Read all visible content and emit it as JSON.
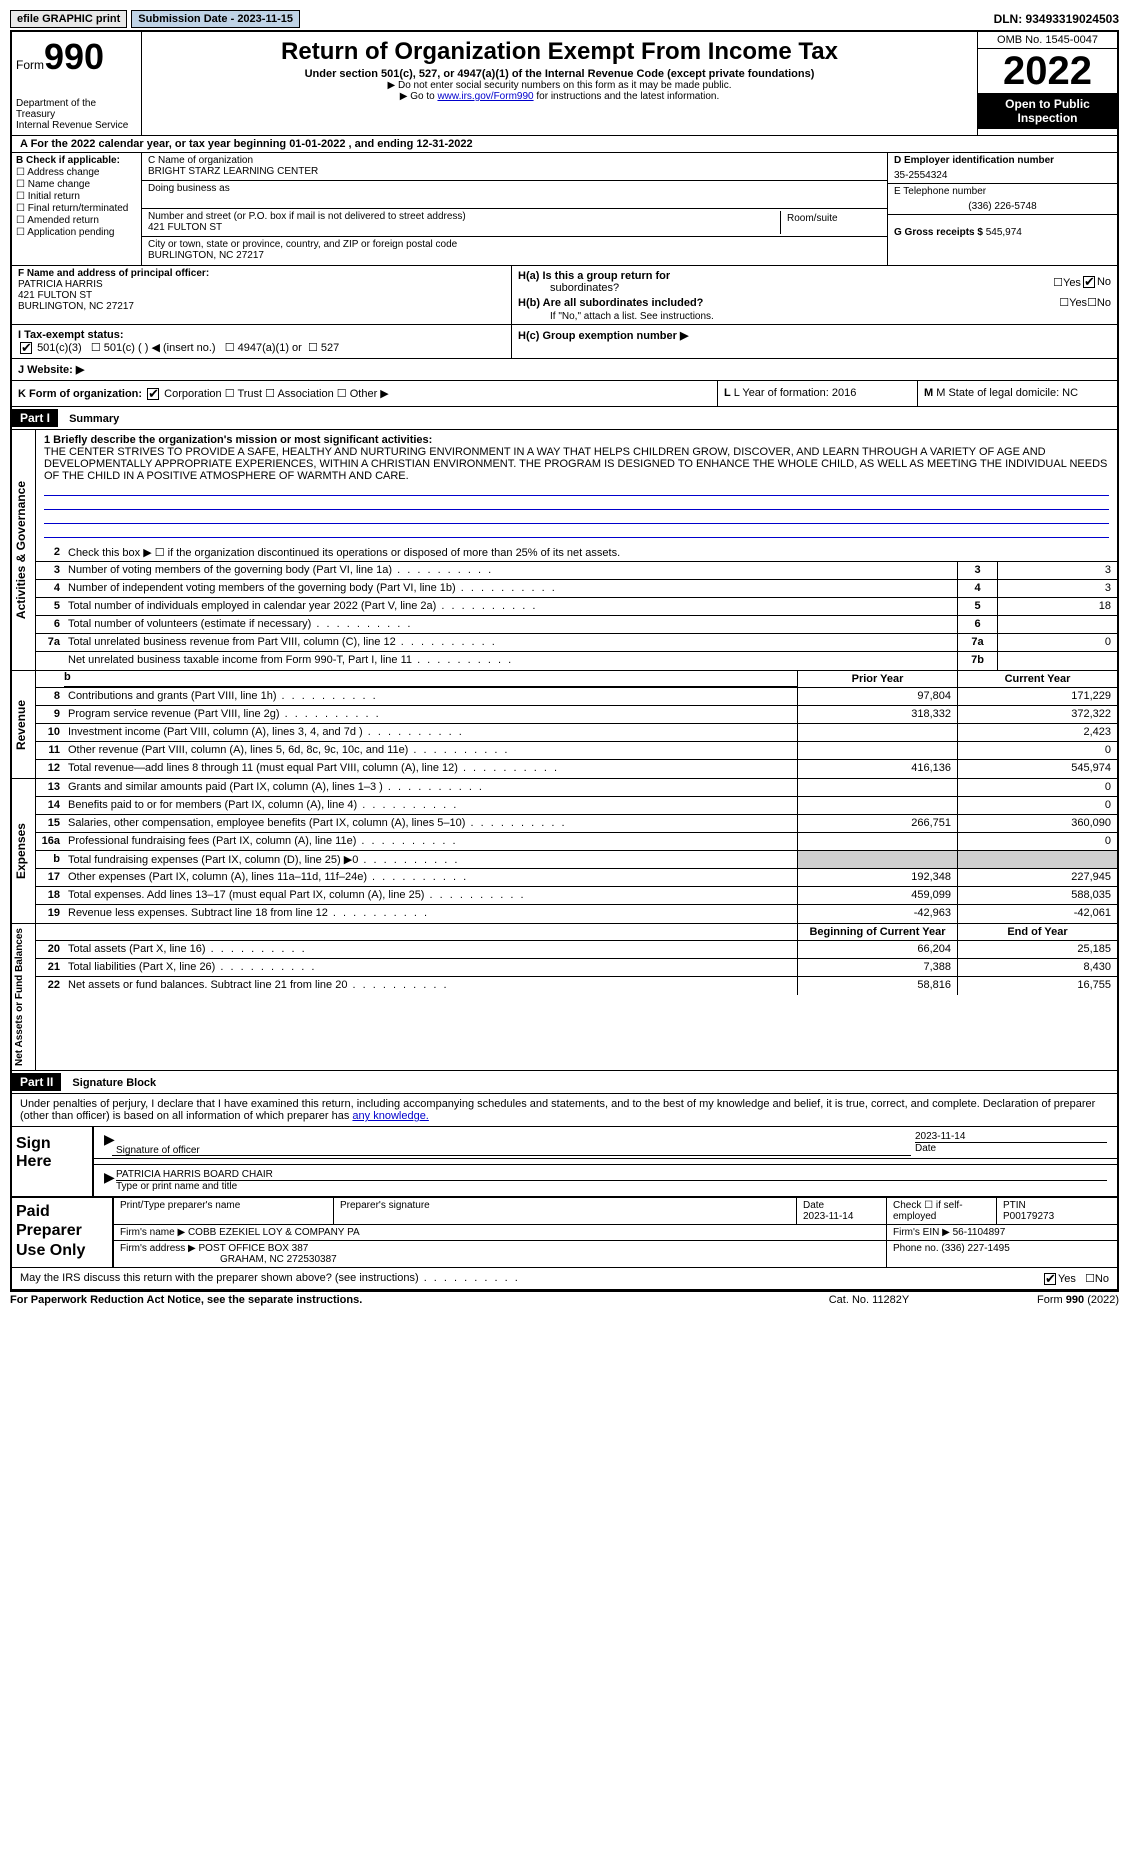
{
  "topbar": {
    "efile": "efile GRAPHIC print",
    "submission": "Submission Date - 2023-11-15",
    "dln": "DLN: 93493319024503"
  },
  "header": {
    "form_label": "Form",
    "form_num": "990",
    "dept": "Department of the Treasury",
    "irs": "Internal Revenue Service",
    "title": "Return of Organization Exempt From Income Tax",
    "subtitle": "Under section 501(c), 527, or 4947(a)(1) of the Internal Revenue Code (except private foundations)",
    "note1": "▶ Do not enter social security numbers on this form as it may be made public.",
    "note2_pre": "▶ Go to ",
    "note2_link": "www.irs.gov/Form990",
    "note2_post": " for instructions and the latest information.",
    "omb": "OMB No. 1545-0047",
    "year": "2022",
    "open": "Open to Public Inspection"
  },
  "row_a": "A For the 2022 calendar year, or tax year beginning 01-01-2022    , and ending 12-31-2022",
  "col_b": {
    "label": "B Check if applicable:",
    "items": [
      "Address change",
      "Name change",
      "Initial return",
      "Final return/terminated",
      "Amended return",
      "Application pending"
    ]
  },
  "col_c": {
    "name_label": "C Name of organization",
    "name": "BRIGHT STARZ LEARNING CENTER",
    "dba_label": "Doing business as",
    "street_label": "Number and street (or P.O. box if mail is not delivered to street address)",
    "street": "421 FULTON ST",
    "room_label": "Room/suite",
    "city_label": "City or town, state or province, country, and ZIP or foreign postal code",
    "city": "BURLINGTON, NC  27217"
  },
  "col_d": {
    "ein_label": "D Employer identification number",
    "ein": "35-2554324",
    "phone_label": "E Telephone number",
    "phone": "(336) 226-5748",
    "gross_label": "G Gross receipts $",
    "gross": "545,974"
  },
  "col_f": {
    "label": "F  Name and address of principal officer:",
    "name": "PATRICIA HARRIS",
    "street": "421 FULTON ST",
    "city": "BURLINGTON, NC  27217"
  },
  "col_h": {
    "ha": "H(a)  Is this a group return for",
    "ha2": "subordinates?",
    "hb": "H(b)  Are all subordinates included?",
    "hb_note": "If \"No,\" attach a list. See instructions.",
    "hc": "H(c)  Group exemption number ▶"
  },
  "tax": {
    "label": "I   Tax-exempt status:",
    "opts": [
      "501(c)(3)",
      "501(c) (  ) ◀ (insert no.)",
      "4947(a)(1) or",
      "527"
    ]
  },
  "website": "J   Website: ▶",
  "row_k": {
    "label": "K Form of organization:",
    "opts": [
      "Corporation",
      "Trust",
      "Association",
      "Other ▶"
    ],
    "year_label": "L Year of formation: 2016",
    "state_label": "M State of legal domicile: NC"
  },
  "part1": {
    "hdr": "Part I",
    "title": "Summary",
    "mission_label": "1 Briefly describe the organization's mission or most significant activities:",
    "mission": "THE CENTER STRIVES TO PROVIDE A SAFE, HEALTHY AND NURTURING ENVIRONMENT IN A WAY THAT HELPS CHILDREN GROW, DISCOVER, AND LEARN THROUGH A VARIETY OF AGE AND DEVELOPMENTALLY APPROPRIATE EXPERIENCES, WITHIN A CHRISTIAN ENVIRONMENT. THE PROGRAM IS DESIGNED TO ENHANCE THE WHOLE CHILD, AS WELL AS MEETING THE INDIVIDUAL NEEDS OF THE CHILD IN A POSITIVE ATMOSPHERE OF WARMTH AND CARE.",
    "line2": "Check this box ▶ ☐  if the organization discontinued its operations or disposed of more than 25% of its net assets."
  },
  "activities": {
    "label": "Activities & Governance",
    "lines": [
      {
        "n": "3",
        "d": "Number of voting members of the governing body (Part VI, line 1a)",
        "box": "3",
        "v": "3"
      },
      {
        "n": "4",
        "d": "Number of independent voting members of the governing body (Part VI, line 1b)",
        "box": "4",
        "v": "3"
      },
      {
        "n": "5",
        "d": "Total number of individuals employed in calendar year 2022 (Part V, line 2a)",
        "box": "5",
        "v": "18"
      },
      {
        "n": "6",
        "d": "Total number of volunteers (estimate if necessary)",
        "box": "6",
        "v": ""
      },
      {
        "n": "7a",
        "d": "Total unrelated business revenue from Part VIII, column (C), line 12",
        "box": "7a",
        "v": "0"
      },
      {
        "n": "",
        "d": "Net unrelated business taxable income from Form 990-T, Part I, line 11",
        "box": "7b",
        "v": ""
      }
    ]
  },
  "revenue": {
    "label": "Revenue",
    "hdr_prior": "Prior Year",
    "hdr_current": "Current Year",
    "lines": [
      {
        "n": "8",
        "d": "Contributions and grants (Part VIII, line 1h)",
        "p": "97,804",
        "c": "171,229"
      },
      {
        "n": "9",
        "d": "Program service revenue (Part VIII, line 2g)",
        "p": "318,332",
        "c": "372,322"
      },
      {
        "n": "10",
        "d": "Investment income (Part VIII, column (A), lines 3, 4, and 7d )",
        "p": "",
        "c": "2,423"
      },
      {
        "n": "11",
        "d": "Other revenue (Part VIII, column (A), lines 5, 6d, 8c, 9c, 10c, and 11e)",
        "p": "",
        "c": "0"
      },
      {
        "n": "12",
        "d": "Total revenue—add lines 8 through 11 (must equal Part VIII, column (A), line 12)",
        "p": "416,136",
        "c": "545,974"
      }
    ]
  },
  "expenses": {
    "label": "Expenses",
    "lines": [
      {
        "n": "13",
        "d": "Grants and similar amounts paid (Part IX, column (A), lines 1–3 )",
        "p": "",
        "c": "0"
      },
      {
        "n": "14",
        "d": "Benefits paid to or for members (Part IX, column (A), line 4)",
        "p": "",
        "c": "0"
      },
      {
        "n": "15",
        "d": "Salaries, other compensation, employee benefits (Part IX, column (A), lines 5–10)",
        "p": "266,751",
        "c": "360,090"
      },
      {
        "n": "16a",
        "d": "Professional fundraising fees (Part IX, column (A), line 11e)",
        "p": "",
        "c": "0"
      },
      {
        "n": "b",
        "d": "Total fundraising expenses (Part IX, column (D), line 25) ▶0",
        "p": "shaded",
        "c": "shaded"
      },
      {
        "n": "17",
        "d": "Other expenses (Part IX, column (A), lines 11a–11d, 11f–24e)",
        "p": "192,348",
        "c": "227,945"
      },
      {
        "n": "18",
        "d": "Total expenses. Add lines 13–17 (must equal Part IX, column (A), line 25)",
        "p": "459,099",
        "c": "588,035"
      },
      {
        "n": "19",
        "d": "Revenue less expenses. Subtract line 18 from line 12",
        "p": "-42,963",
        "c": "-42,061"
      }
    ]
  },
  "netassets": {
    "label": "Net Assets or Fund Balances",
    "hdr_begin": "Beginning of Current Year",
    "hdr_end": "End of Year",
    "lines": [
      {
        "n": "20",
        "d": "Total assets (Part X, line 16)",
        "p": "66,204",
        "c": "25,185"
      },
      {
        "n": "21",
        "d": "Total liabilities (Part X, line 26)",
        "p": "7,388",
        "c": "8,430"
      },
      {
        "n": "22",
        "d": "Net assets or fund balances. Subtract line 21 from line 20",
        "p": "58,816",
        "c": "16,755"
      }
    ]
  },
  "part2": {
    "hdr": "Part II",
    "title": "Signature Block",
    "text": "Under penalties of perjury, I declare that I have examined this return, including accompanying schedules and statements, and to the best of my knowledge and belief, it is true, correct, and complete. Declaration of preparer (other than officer) is based on all information of which preparer has ",
    "text_link": "any knowledge."
  },
  "sign": {
    "label": "Sign Here",
    "sig_label": "Signature of officer",
    "date": "2023-11-14",
    "date_label": "Date",
    "name": "PATRICIA HARRIS  BOARD CHAIR",
    "name_label": "Type or print name and title"
  },
  "prep": {
    "label": "Paid Preparer Use Only",
    "col1": "Print/Type preparer's name",
    "col2": "Preparer's signature",
    "col3_label": "Date",
    "col3": "2023-11-14",
    "col4": "Check ☐ if self-employed",
    "col5_label": "PTIN",
    "col5": "P00179273",
    "firm_label": "Firm's name    ▶",
    "firm": "COBB EZEKIEL LOY & COMPANY PA",
    "ein_label": "Firm's EIN ▶",
    "ein": "56-1104897",
    "addr_label": "Firm's address ▶",
    "addr1": "POST OFFICE BOX 387",
    "addr2": "GRAHAM, NC  272530387",
    "phone_label": "Phone no.",
    "phone": "(336) 227-1495"
  },
  "may": "May the IRS discuss this return with the preparer shown above? (see instructions)",
  "footer": {
    "f1": "For Paperwork Reduction Act Notice, see the separate instructions.",
    "f2": "Cat. No. 11282Y",
    "f3": "Form 990 (2022)"
  }
}
